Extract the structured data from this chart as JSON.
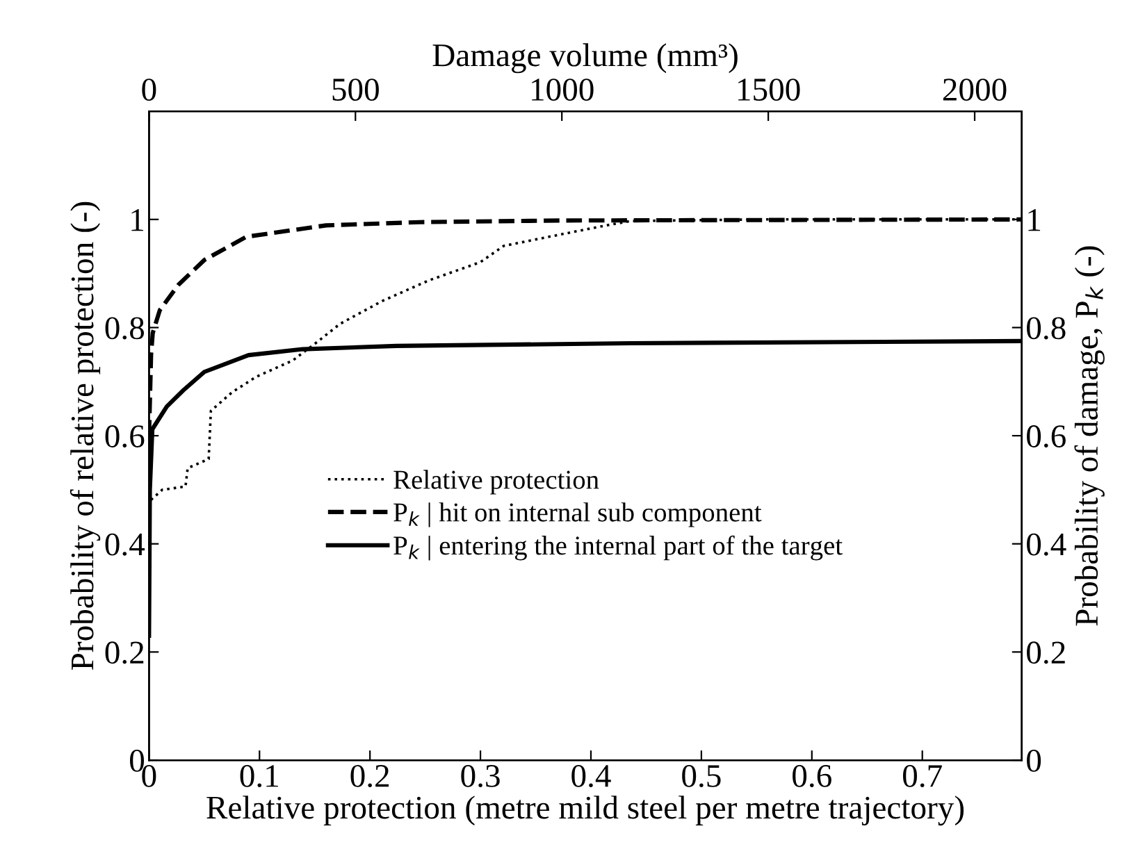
{
  "chart_data": {
    "type": "line",
    "xlabel": "Relative protection (metre mild steel per metre trajectory)",
    "ylabel": "Probability of relative protection (-)",
    "x2label": "Damage volume (mm³)",
    "y2label": "Probability of damage, P$_{k}$ (-)",
    "xlim": [
      0,
      0.79
    ],
    "xticks": [
      0,
      0.1,
      0.2,
      0.3,
      0.4,
      0.5,
      0.6,
      0.7
    ],
    "x2lim": [
      0,
      2114
    ],
    "x2ticks": [
      0,
      500,
      1000,
      1500,
      2000
    ],
    "ylim": [
      0,
      1.2
    ],
    "yticks": [
      0,
      0.2,
      0.4,
      0.6,
      0.8,
      1
    ],
    "y2lim": [
      0,
      1.2
    ],
    "y2ticks": [
      0,
      0.2,
      0.4,
      0.6,
      0.8,
      1
    ],
    "grid": false,
    "legend": "bottom",
    "marker": "none",
    "series": [
      {
        "name": "Relative protection",
        "color": "#000000",
        "line_style": "dotted",
        "x": [
          0,
          0.001,
          0.012,
          0.033,
          0.035,
          0.054,
          0.056,
          0.075,
          0.097,
          0.13,
          0.152,
          0.173,
          0.211,
          0.253,
          0.3,
          0.321,
          0.372,
          0.414,
          0.436,
          0.55,
          0.79
        ],
        "values": [
          0.47,
          0.48,
          0.5,
          0.506,
          0.54,
          0.557,
          0.646,
          0.68,
          0.709,
          0.739,
          0.773,
          0.807,
          0.849,
          0.887,
          0.921,
          0.951,
          0.972,
          0.989,
          0.997,
          1.0,
          1.0
        ]
      },
      {
        "name": "P$_{k}$ | hit on internal sub component",
        "color": "#000000",
        "line_style": "dashed",
        "axis": "x2",
        "x": [
          0,
          5,
          9,
          26,
          71,
          134,
          236,
          429,
          655,
          1000,
          2114
        ],
        "values": [
          0.6,
          0.75,
          0.79,
          0.832,
          0.879,
          0.925,
          0.968,
          0.989,
          0.995,
          0.998,
          1.0
        ]
      },
      {
        "name": "P$_{k}$ | entering the internal part of the target",
        "color": "#000000",
        "line_style": "solid",
        "axis": "x2",
        "x": [
          0,
          2,
          8,
          43,
          83,
          134,
          241,
          372,
          599,
          1166,
          2114
        ],
        "values": [
          0.23,
          0.5,
          0.612,
          0.654,
          0.684,
          0.718,
          0.749,
          0.76,
          0.766,
          0.771,
          0.775
        ]
      }
    ]
  }
}
